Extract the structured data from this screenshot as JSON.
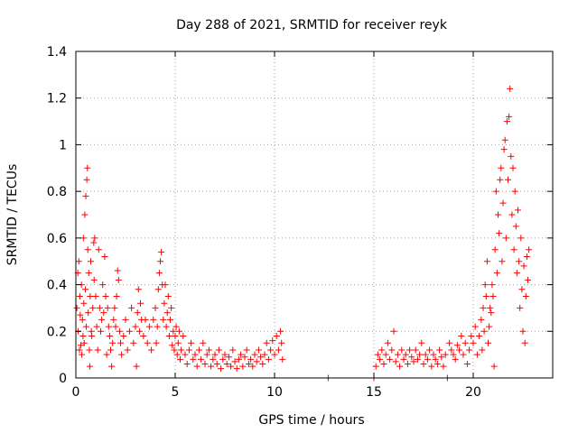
{
  "chart_data": {
    "type": "scatter",
    "title": "Day 288 of 2021, SRMTID for receiver reyk",
    "xlabel": "GPS time / hours",
    "ylabel": "SRMTID / TECUs",
    "xlim": [
      0,
      24
    ],
    "ylim": [
      0,
      1.4
    ],
    "xticks": [
      0,
      5,
      10,
      15,
      20
    ],
    "xtick_labels": [
      "0",
      "5",
      "10",
      "15",
      "20"
    ],
    "yticks": [
      0,
      0.2,
      0.4,
      0.6,
      0.8,
      1.0,
      1.2,
      1.4
    ],
    "ytick_labels": [
      "0",
      "0.2",
      "0.4",
      "0.6",
      "0.8",
      "1",
      "1.2",
      "1.4"
    ],
    "grid": true,
    "marker": "+",
    "color": "#ff0000",
    "series": [
      {
        "name": "SRMTID",
        "points": [
          [
            0.05,
            0.3
          ],
          [
            0.1,
            0.45
          ],
          [
            0.12,
            0.2
          ],
          [
            0.15,
            0.5
          ],
          [
            0.18,
            0.12
          ],
          [
            0.2,
            0.35
          ],
          [
            0.22,
            0.27
          ],
          [
            0.25,
            0.14
          ],
          [
            0.28,
            0.4
          ],
          [
            0.3,
            0.1
          ],
          [
            0.33,
            0.25
          ],
          [
            0.36,
            0.18
          ],
          [
            0.38,
            0.6
          ],
          [
            0.4,
            0.32
          ],
          [
            0.42,
            0.15
          ],
          [
            0.45,
            0.7
          ],
          [
            0.48,
            0.38
          ],
          [
            0.5,
            0.78
          ],
          [
            0.52,
            0.22
          ],
          [
            0.55,
            0.85
          ],
          [
            0.58,
            0.9
          ],
          [
            0.6,
            0.55
          ],
          [
            0.62,
            0.28
          ],
          [
            0.65,
            0.45
          ],
          [
            0.68,
            0.12
          ],
          [
            0.7,
            0.05
          ],
          [
            0.72,
            0.35
          ],
          [
            0.75,
            0.5
          ],
          [
            0.78,
            0.2
          ],
          [
            0.8,
            0.18
          ],
          [
            0.85,
            0.3
          ],
          [
            0.9,
            0.58
          ],
          [
            0.92,
            0.42
          ],
          [
            0.95,
            0.6
          ],
          [
            1.0,
            0.35
          ],
          [
            1.05,
            0.22
          ],
          [
            1.1,
            0.12
          ],
          [
            1.15,
            0.55
          ],
          [
            1.2,
            0.3
          ],
          [
            1.25,
            0.2
          ],
          [
            1.3,
            0.25
          ],
          [
            1.35,
            0.4
          ],
          [
            1.4,
            0.28
          ],
          [
            1.45,
            0.52
          ],
          [
            1.5,
            0.35
          ],
          [
            1.55,
            0.1
          ],
          [
            1.6,
            0.3
          ],
          [
            1.65,
            0.22
          ],
          [
            1.7,
            0.18
          ],
          [
            1.75,
            0.12
          ],
          [
            1.8,
            0.05
          ],
          [
            1.85,
            0.15
          ],
          [
            1.9,
            0.25
          ],
          [
            1.95,
            0.3
          ],
          [
            2.0,
            0.22
          ],
          [
            2.05,
            0.35
          ],
          [
            2.1,
            0.46
          ],
          [
            2.15,
            0.42
          ],
          [
            2.2,
            0.2
          ],
          [
            2.25,
            0.15
          ],
          [
            2.3,
            0.1
          ],
          [
            2.4,
            0.18
          ],
          [
            2.5,
            0.25
          ],
          [
            2.6,
            0.12
          ],
          [
            2.7,
            0.2
          ],
          [
            2.8,
            0.3
          ],
          [
            2.9,
            0.15
          ],
          [
            3.0,
            0.22
          ],
          [
            3.05,
            0.05
          ],
          [
            3.1,
            0.28
          ],
          [
            3.15,
            0.38
          ],
          [
            3.2,
            0.2
          ],
          [
            3.25,
            0.32
          ],
          [
            3.3,
            0.25
          ],
          [
            3.4,
            0.18
          ],
          [
            3.5,
            0.25
          ],
          [
            3.6,
            0.15
          ],
          [
            3.7,
            0.22
          ],
          [
            3.8,
            0.12
          ],
          [
            3.9,
            0.25
          ],
          [
            4.0,
            0.3
          ],
          [
            4.05,
            0.15
          ],
          [
            4.1,
            0.22
          ],
          [
            4.15,
            0.38
          ],
          [
            4.2,
            0.45
          ],
          [
            4.25,
            0.5
          ],
          [
            4.3,
            0.54
          ],
          [
            4.35,
            0.4
          ],
          [
            4.4,
            0.25
          ],
          [
            4.45,
            0.32
          ],
          [
            4.5,
            0.4
          ],
          [
            4.55,
            0.22
          ],
          [
            4.6,
            0.28
          ],
          [
            4.65,
            0.35
          ],
          [
            4.7,
            0.18
          ],
          [
            4.75,
            0.25
          ],
          [
            4.8,
            0.3
          ],
          [
            4.85,
            0.14
          ],
          [
            4.9,
            0.2
          ],
          [
            4.95,
            0.12
          ],
          [
            5.0,
            0.18
          ],
          [
            5.05,
            0.22
          ],
          [
            5.1,
            0.1
          ],
          [
            5.15,
            0.15
          ],
          [
            5.2,
            0.2
          ],
          [
            5.25,
            0.08
          ],
          [
            5.3,
            0.12
          ],
          [
            5.4,
            0.18
          ],
          [
            5.5,
            0.1
          ],
          [
            5.6,
            0.06
          ],
          [
            5.7,
            0.12
          ],
          [
            5.8,
            0.15
          ],
          [
            5.9,
            0.08
          ],
          [
            6.0,
            0.1
          ],
          [
            6.1,
            0.05
          ],
          [
            6.2,
            0.12
          ],
          [
            6.3,
            0.08
          ],
          [
            6.4,
            0.15
          ],
          [
            6.5,
            0.06
          ],
          [
            6.6,
            0.1
          ],
          [
            6.7,
            0.12
          ],
          [
            6.8,
            0.05
          ],
          [
            6.9,
            0.08
          ],
          [
            7.0,
            0.1
          ],
          [
            7.1,
            0.06
          ],
          [
            7.2,
            0.12
          ],
          [
            7.3,
            0.04
          ],
          [
            7.4,
            0.08
          ],
          [
            7.5,
            0.1
          ],
          [
            7.6,
            0.06
          ],
          [
            7.7,
            0.09
          ],
          [
            7.8,
            0.05
          ],
          [
            7.9,
            0.12
          ],
          [
            8.0,
            0.07
          ],
          [
            8.1,
            0.04
          ],
          [
            8.2,
            0.08
          ],
          [
            8.3,
            0.1
          ],
          [
            8.4,
            0.05
          ],
          [
            8.5,
            0.09
          ],
          [
            8.6,
            0.12
          ],
          [
            8.7,
            0.06
          ],
          [
            8.8,
            0.08
          ],
          [
            8.9,
            0.05
          ],
          [
            9.0,
            0.1
          ],
          [
            9.1,
            0.07
          ],
          [
            9.2,
            0.12
          ],
          [
            9.3,
            0.09
          ],
          [
            9.4,
            0.06
          ],
          [
            9.5,
            0.1
          ],
          [
            9.6,
            0.15
          ],
          [
            9.7,
            0.08
          ],
          [
            9.8,
            0.12
          ],
          [
            9.9,
            0.16
          ],
          [
            10.0,
            0.1
          ],
          [
            10.1,
            0.18
          ],
          [
            10.2,
            0.12
          ],
          [
            10.3,
            0.2
          ],
          [
            10.35,
            0.15
          ],
          [
            10.4,
            0.08
          ],
          [
            12.7,
            0.0
          ],
          [
            15.0,
            0.0
          ],
          [
            15.1,
            0.05
          ],
          [
            15.2,
            0.1
          ],
          [
            15.3,
            0.08
          ],
          [
            15.4,
            0.12
          ],
          [
            15.5,
            0.06
          ],
          [
            15.6,
            0.1
          ],
          [
            15.7,
            0.15
          ],
          [
            15.8,
            0.08
          ],
          [
            15.9,
            0.12
          ],
          [
            16.0,
            0.2
          ],
          [
            16.1,
            0.07
          ],
          [
            16.2,
            0.1
          ],
          [
            16.3,
            0.05
          ],
          [
            16.4,
            0.12
          ],
          [
            16.5,
            0.08
          ],
          [
            16.6,
            0.1
          ],
          [
            16.7,
            0.06
          ],
          [
            16.8,
            0.12
          ],
          [
            16.9,
            0.09
          ],
          [
            17.0,
            0.07
          ],
          [
            17.1,
            0.12
          ],
          [
            17.2,
            0.08
          ],
          [
            17.3,
            0.1
          ],
          [
            17.4,
            0.15
          ],
          [
            17.5,
            0.06
          ],
          [
            17.6,
            0.1
          ],
          [
            17.7,
            0.08
          ],
          [
            17.8,
            0.12
          ],
          [
            17.9,
            0.05
          ],
          [
            18.0,
            0.1
          ],
          [
            18.1,
            0.08
          ],
          [
            18.2,
            0.06
          ],
          [
            18.3,
            0.12
          ],
          [
            18.4,
            0.09
          ],
          [
            18.5,
            0.05
          ],
          [
            18.6,
            0.1
          ],
          [
            18.7,
            0.0
          ],
          [
            18.8,
            0.15
          ],
          [
            18.9,
            0.12
          ],
          [
            19.0,
            0.1
          ],
          [
            19.1,
            0.08
          ],
          [
            19.2,
            0.14
          ],
          [
            19.3,
            0.12
          ],
          [
            19.4,
            0.18
          ],
          [
            19.5,
            0.1
          ],
          [
            19.6,
            0.15
          ],
          [
            19.7,
            0.06
          ],
          [
            19.8,
            0.12
          ],
          [
            19.9,
            0.18
          ],
          [
            20.0,
            0.15
          ],
          [
            20.1,
            0.22
          ],
          [
            20.2,
            0.1
          ],
          [
            20.3,
            0.18
          ],
          [
            20.4,
            0.25
          ],
          [
            20.45,
            0.12
          ],
          [
            20.5,
            0.3
          ],
          [
            20.55,
            0.2
          ],
          [
            20.6,
            0.4
          ],
          [
            20.65,
            0.35
          ],
          [
            20.7,
            0.5
          ],
          [
            20.75,
            0.15
          ],
          [
            20.8,
            0.22
          ],
          [
            20.85,
            0.3
          ],
          [
            20.9,
            0.28
          ],
          [
            20.95,
            0.4
          ],
          [
            21.0,
            0.35
          ],
          [
            21.05,
            0.05
          ],
          [
            21.1,
            0.55
          ],
          [
            21.15,
            0.8
          ],
          [
            21.2,
            0.45
          ],
          [
            21.25,
            0.7
          ],
          [
            21.3,
            0.62
          ],
          [
            21.35,
            0.85
          ],
          [
            21.4,
            0.9
          ],
          [
            21.45,
            0.5
          ],
          [
            21.5,
            0.75
          ],
          [
            21.55,
            0.98
          ],
          [
            21.6,
            1.02
          ],
          [
            21.65,
            0.6
          ],
          [
            21.7,
            1.1
          ],
          [
            21.75,
            0.85
          ],
          [
            21.8,
            1.12
          ],
          [
            21.85,
            1.24
          ],
          [
            21.9,
            0.95
          ],
          [
            21.95,
            0.7
          ],
          [
            22.0,
            0.9
          ],
          [
            22.05,
            0.55
          ],
          [
            22.1,
            0.8
          ],
          [
            22.15,
            0.65
          ],
          [
            22.2,
            0.45
          ],
          [
            22.25,
            0.72
          ],
          [
            22.3,
            0.5
          ],
          [
            22.35,
            0.3
          ],
          [
            22.4,
            0.6
          ],
          [
            22.45,
            0.38
          ],
          [
            22.5,
            0.2
          ],
          [
            22.55,
            0.48
          ],
          [
            22.6,
            0.15
          ],
          [
            22.65,
            0.35
          ],
          [
            22.7,
            0.52
          ],
          [
            22.75,
            0.42
          ],
          [
            22.8,
            0.55
          ]
        ]
      }
    ]
  }
}
